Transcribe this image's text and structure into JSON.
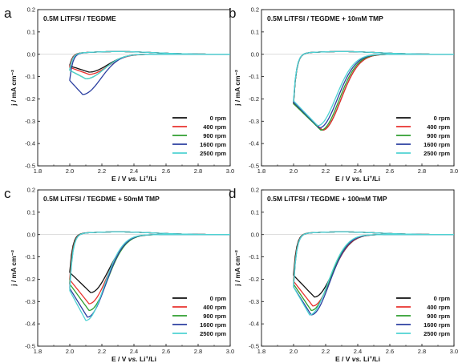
{
  "figure": {
    "colors": {
      "0 rpm": "#111111",
      "400 rpm": "#e8322e",
      "900 rpm": "#2f9e2f",
      "1600 rpm": "#2b3fa0",
      "2500 rpm": "#4fd3d3"
    },
    "ylabel": "j / mA cm⁻²",
    "xlabel_parts": [
      "E / V ",
      "vs.",
      " Li",
      "+",
      "/Li"
    ]
  },
  "chart_data": [
    {
      "type": "line",
      "panel": "a",
      "title": "0.5M LiTFSI / TEGDME",
      "xlim": [
        1.8,
        3.0
      ],
      "ylim": [
        -0.5,
        0.2
      ],
      "xticks": [
        "1.8",
        "2.0",
        "2.2",
        "2.4",
        "2.6",
        "2.8",
        "3.0"
      ],
      "yticks": [
        "0.2",
        "0.1",
        "0.0",
        "-0.1",
        "-0.2",
        "-0.3",
        "-0.4",
        "-0.5"
      ],
      "legend": [
        "0 rpm",
        "400 rpm",
        "900 rpm",
        "1600 rpm",
        "2500 rpm"
      ],
      "legend_position": "lower-right",
      "peak_potential_V": [
        2.12,
        2.12,
        2.1,
        2.08,
        2.1
      ],
      "peak_current_mA_cm2": [
        -0.08,
        -0.09,
        -0.11,
        -0.18,
        -0.11
      ]
    },
    {
      "type": "line",
      "panel": "b",
      "title": "0.5M LiTFSI / TEGDME + 10mM TMP",
      "xlim": [
        1.8,
        3.0
      ],
      "ylim": [
        -0.5,
        0.2
      ],
      "xticks": [
        "1.8",
        "2.0",
        "2.2",
        "2.4",
        "2.6",
        "2.8",
        "3.0"
      ],
      "yticks": [
        "0.2",
        "0.1",
        "0.0",
        "-0.1",
        "-0.2",
        "-0.3",
        "-0.4",
        "-0.5"
      ],
      "legend": [
        "0 rpm",
        "400 rpm",
        "900 rpm",
        "1600 rpm",
        "2500 rpm"
      ],
      "legend_position": "lower-right",
      "peak_potential_V": [
        2.18,
        2.18,
        2.17,
        2.16,
        2.15
      ],
      "peak_current_mA_cm2": [
        -0.34,
        -0.34,
        -0.34,
        -0.33,
        -0.32
      ]
    },
    {
      "type": "line",
      "panel": "c",
      "title": "0.5M LiTFSI / TEGDME + 50mM TMP",
      "xlim": [
        1.8,
        3.0
      ],
      "ylim": [
        -0.5,
        0.2
      ],
      "xticks": [
        "1.8",
        "2.0",
        "2.2",
        "2.4",
        "2.6",
        "2.8",
        "3.0"
      ],
      "yticks": [
        "0.2",
        "0.1",
        "0.0",
        "-0.1",
        "-0.2",
        "-0.3",
        "-0.4",
        "-0.5"
      ],
      "legend": [
        "0 rpm",
        "400 rpm",
        "900 rpm",
        "1600 rpm",
        "2500 rpm"
      ],
      "legend_position": "lower-right",
      "peak_potential_V": [
        2.13,
        2.12,
        2.12,
        2.11,
        2.1
      ],
      "peak_current_mA_cm2": [
        -0.26,
        -0.31,
        -0.34,
        -0.37,
        -0.385
      ]
    },
    {
      "type": "line",
      "panel": "d",
      "title": "0.5M LiTFSI / TEGDME + 100mM TMP",
      "xlim": [
        1.8,
        3.0
      ],
      "ylim": [
        -0.5,
        0.2
      ],
      "xticks": [
        "1.8",
        "2.0",
        "2.2",
        "2.4",
        "2.6",
        "2.8",
        "3.0"
      ],
      "yticks": [
        "0.2",
        "0.1",
        "0.0",
        "-0.1",
        "-0.2",
        "-0.3",
        "-0.4",
        "-0.5"
      ],
      "legend": [
        "0 rpm",
        "400 rpm",
        "900 rpm",
        "1600 rpm",
        "2500 rpm"
      ],
      "legend_position": "lower-right",
      "peak_potential_V": [
        2.13,
        2.12,
        2.11,
        2.11,
        2.1
      ],
      "peak_current_mA_cm2": [
        -0.28,
        -0.32,
        -0.34,
        -0.36,
        -0.36
      ]
    }
  ]
}
